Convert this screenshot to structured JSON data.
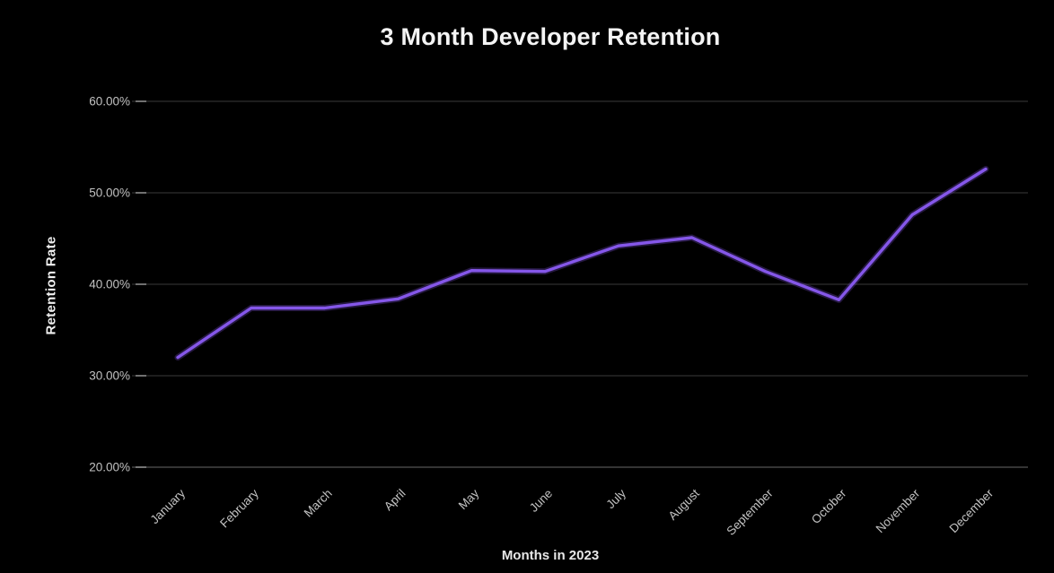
{
  "page": {
    "background_color": "#000000",
    "text_color": "#f4f4f4",
    "muted_text_color": "#c2c2c2",
    "gridline_color": "#2f2f2f",
    "axis_line_color": "#454545"
  },
  "chart": {
    "title": "3 Month Developer Retention"
  },
  "chart_data": {
    "type": "line",
    "title": "3 Month Developer Retention",
    "xlabel": "Months in 2023",
    "ylabel": "Retention Rate",
    "categories": [
      "January",
      "February",
      "March",
      "April",
      "May",
      "June",
      "July",
      "August",
      "September",
      "October",
      "November",
      "December"
    ],
    "series": [
      {
        "name": "Retention Rate",
        "color": "#8557e9",
        "values": [
          32.0,
          37.4,
          37.4,
          38.4,
          41.5,
          41.4,
          44.2,
          45.1,
          41.4,
          38.3,
          47.6,
          52.6
        ]
      }
    ],
    "ylim": [
      20,
      60
    ],
    "y_tick_values": [
      20,
      30,
      40,
      50,
      60
    ],
    "y_tick_labels": [
      "20.00%",
      "30.00%",
      "40.00%",
      "50.00%",
      "60.00%"
    ],
    "x_tick_rotation_deg": -45,
    "grid": "horizontal",
    "legend": "none"
  }
}
